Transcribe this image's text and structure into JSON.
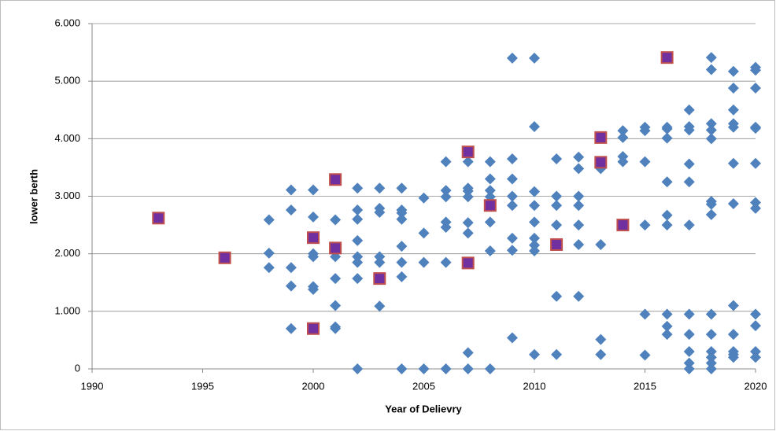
{
  "chart_data": {
    "type": "scatter",
    "xlabel": "Year of Delievry",
    "ylabel": "lower berth",
    "xlim": [
      1990,
      2020
    ],
    "xticks": [
      1990,
      1995,
      2000,
      2005,
      2010,
      2015,
      2020
    ],
    "ylim": [
      0,
      6000
    ],
    "yticks": [
      0,
      {
        "value": 1000,
        "label": "1.000"
      },
      {
        "value": 2000,
        "label": "2.000"
      },
      {
        "value": 3000,
        "label": "3.000"
      },
      {
        "value": 4000,
        "label": "4.000"
      },
      {
        "value": 5000,
        "label": "5.000"
      },
      {
        "value": 6000,
        "label": "6.000"
      }
    ],
    "grid": true,
    "series": [
      {
        "color": "#4f81bd",
        "marker": "diamond",
        "x": [
          1998,
          1998,
          1998,
          1999,
          1999,
          1999,
          1999,
          1999,
          2000,
          2000,
          2000,
          2000,
          2000,
          2000,
          2000,
          2001,
          2001,
          2001,
          2001,
          2001,
          2001,
          2001,
          2001,
          2002,
          2002,
          2002,
          2002,
          2002,
          2002,
          2002,
          2002,
          2003,
          2003,
          2003,
          2003,
          2003,
          2003,
          2004,
          2004,
          2004,
          2004,
          2004,
          2004,
          2004,
          2004,
          2005,
          2005,
          2005,
          2005,
          2006,
          2006,
          2006,
          2006,
          2006,
          2006,
          2006,
          2007,
          2007,
          2007,
          2007,
          2007,
          2007,
          2007,
          2007,
          2008,
          2008,
          2008,
          2008,
          2008,
          2008,
          2008,
          2009,
          2009,
          2009,
          2009,
          2009,
          2009,
          2009,
          2009,
          2010,
          2010,
          2010,
          2010,
          2010,
          2010,
          2010,
          2010,
          2010,
          2011,
          2011,
          2011,
          2011,
          2011,
          2011,
          2012,
          2012,
          2012,
          2012,
          2012,
          2012,
          2012,
          2013,
          2013,
          2013,
          2013,
          2014,
          2014,
          2014,
          2014,
          2015,
          2015,
          2015,
          2015,
          2015,
          2015,
          2016,
          2016,
          2016,
          2016,
          2016,
          2016,
          2016,
          2016,
          2016,
          2017,
          2017,
          2017,
          2017,
          2017,
          2017,
          2017,
          2017,
          2017,
          2017,
          2017,
          2018,
          2018,
          2018,
          2018,
          2018,
          2018,
          2018,
          2018,
          2018,
          2018,
          2018,
          2018,
          2018,
          2018,
          2019,
          2019,
          2019,
          2019,
          2019,
          2019,
          2019,
          2019,
          2019,
          2019,
          2019,
          2019,
          2020,
          2020,
          2020,
          2020,
          2020,
          2020,
          2020,
          2020,
          2020,
          2020,
          2020,
          2020
        ],
        "values": [
          2590,
          2010,
          1760,
          3110,
          2760,
          1760,
          1440,
          700,
          3110,
          2640,
          2000,
          1950,
          1430,
          1380,
          700,
          3300,
          2590,
          2100,
          1950,
          1570,
          1100,
          730,
          700,
          3140,
          2760,
          2600,
          2230,
          1950,
          1850,
          1570,
          0,
          3140,
          2790,
          2720,
          1950,
          1850,
          1090,
          3140,
          2760,
          2710,
          2600,
          2130,
          1850,
          1600,
          0,
          2970,
          2360,
          1850,
          0,
          3600,
          3100,
          2990,
          2550,
          2460,
          1850,
          0,
          3600,
          3140,
          3090,
          2990,
          2540,
          2360,
          280,
          0,
          3600,
          3300,
          3100,
          2990,
          2550,
          2050,
          0,
          5400,
          3650,
          3300,
          3000,
          2840,
          2270,
          2060,
          540,
          5400,
          4210,
          3080,
          2840,
          2550,
          2270,
          2150,
          2050,
          250,
          3650,
          3000,
          2840,
          2500,
          1260,
          250,
          3680,
          3480,
          3000,
          2840,
          2500,
          2160,
          1260,
          3480,
          2160,
          510,
          250,
          4140,
          4020,
          3690,
          3600,
          4200,
          4140,
          3600,
          2500,
          950,
          240,
          4200,
          4170,
          4010,
          3250,
          2670,
          2500,
          950,
          740,
          600,
          4500,
          4210,
          4150,
          3560,
          3250,
          2500,
          950,
          600,
          300,
          100,
          0,
          5410,
          5200,
          4260,
          4150,
          4000,
          2910,
          2860,
          2680,
          950,
          600,
          300,
          200,
          100,
          0,
          5170,
          4880,
          4500,
          4260,
          4200,
          3570,
          2870,
          1100,
          600,
          300,
          250,
          200,
          5240,
          5190,
          4880,
          4200,
          4180,
          3570,
          2890,
          2790,
          950,
          750,
          300,
          200
        ]
      },
      {
        "color": "#7030a0",
        "edgecolor": "#c0504d",
        "marker": "square",
        "x": [
          1993,
          1996,
          2000,
          2000,
          2001,
          2001,
          2003,
          2007,
          2007,
          2008,
          2011,
          2013,
          2013,
          2014,
          2016
        ],
        "values": [
          2620,
          1930,
          2280,
          700,
          3290,
          2100,
          1570,
          3770,
          1840,
          2840,
          2160,
          4020,
          3590,
          2500,
          5410
        ]
      }
    ]
  }
}
